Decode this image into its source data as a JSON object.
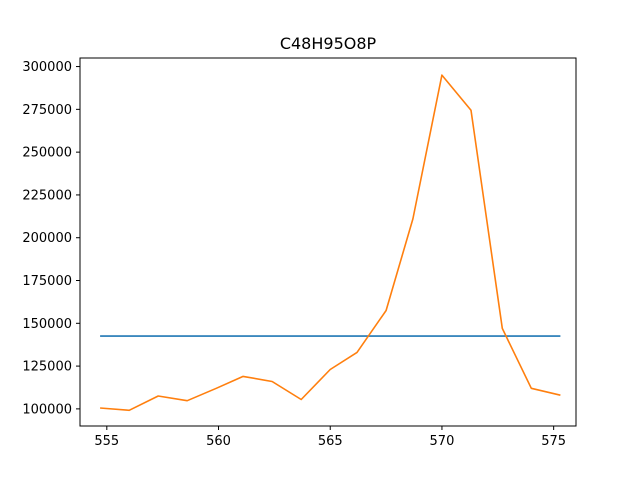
{
  "chart_data": {
    "type": "line",
    "title": "C48H95O8P",
    "xlabel": "",
    "ylabel": "",
    "xlim": [
      553.8,
      576.0
    ],
    "ylim": [
      90000,
      305000
    ],
    "xticks": [
      555,
      560,
      565,
      570,
      575
    ],
    "xtick_labels": [
      "555",
      "560",
      "565",
      "570",
      "575"
    ],
    "yticks": [
      100000,
      125000,
      150000,
      175000,
      200000,
      225000,
      250000,
      275000,
      300000
    ],
    "ytick_labels": [
      "100000",
      "125000",
      "150000",
      "175000",
      "200000",
      "225000",
      "250000",
      "275000",
      "300000"
    ],
    "grid": false,
    "series": [
      {
        "color": "#1f77b4",
        "x": [
          554.7,
          575.3
        ],
        "y": [
          142500,
          142500
        ]
      },
      {
        "color": "#ff7f0e",
        "x": [
          554.7,
          556.0,
          557.3,
          558.6,
          559.9,
          561.1,
          562.4,
          563.7,
          565.0,
          566.2,
          567.5,
          568.7,
          570.0,
          571.3,
          572.7,
          574.0,
          575.3
        ],
        "y": [
          100500,
          99200,
          107500,
          104800,
          112000,
          119000,
          116000,
          105500,
          123000,
          133000,
          157500,
          211000,
          295000,
          274500,
          147000,
          112000,
          108000
        ]
      }
    ]
  }
}
